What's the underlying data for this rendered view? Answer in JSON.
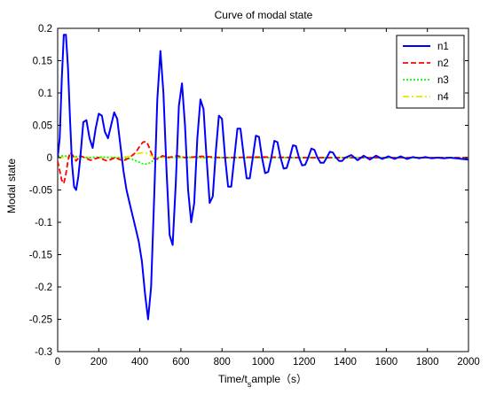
{
  "chart_data": {
    "type": "line",
    "title": "Curve of modal state",
    "xlabel_parts": {
      "pre": "Time/t",
      "sub": "s",
      "post": "ample（s）"
    },
    "ylabel": "Modal state",
    "xlim": [
      0,
      2000
    ],
    "ylim": [
      -0.3,
      0.2
    ],
    "x_ticks": [
      0,
      200,
      400,
      600,
      800,
      1000,
      1200,
      1400,
      1600,
      1800,
      2000
    ],
    "y_ticks": [
      -0.3,
      -0.25,
      -0.2,
      -0.15,
      -0.1,
      -0.05,
      0,
      0.05,
      0.1,
      0.15,
      0.2
    ],
    "y_tick_labels": [
      "-0.3",
      "-0.25",
      "-0.2",
      "-0.15",
      "-0.1",
      "-0.05",
      "0",
      "0.05",
      "0.1",
      "0.15",
      "0.2"
    ],
    "grid": false,
    "legend_position": "top-right",
    "series": [
      {
        "name": "n1",
        "color": "#0000ff",
        "style": "solid",
        "x": [
          0,
          10,
          20,
          30,
          40,
          50,
          60,
          70,
          80,
          90,
          100,
          110,
          125,
          140,
          155,
          170,
          185,
          200,
          215,
          230,
          245,
          260,
          275,
          290,
          305,
          320,
          335,
          350,
          365,
          380,
          395,
          410,
          425,
          440,
          455,
          470,
          485,
          500,
          515,
          530,
          545,
          560,
          575,
          590,
          605,
          620,
          635,
          650,
          665,
          680,
          695,
          710,
          725,
          740,
          755,
          770,
          785,
          800,
          815,
          830,
          845,
          860,
          875,
          890,
          905,
          920,
          935,
          950,
          965,
          980,
          995,
          1010,
          1025,
          1040,
          1055,
          1070,
          1085,
          1100,
          1115,
          1130,
          1145,
          1160,
          1175,
          1190,
          1205,
          1220,
          1235,
          1250,
          1265,
          1280,
          1295,
          1310,
          1325,
          1340,
          1355,
          1370,
          1385,
          1400,
          1430,
          1460,
          1490,
          1520,
          1550,
          1580,
          1610,
          1640,
          1670,
          1700,
          1730,
          1760,
          1790,
          1820,
          1850,
          1880,
          1910,
          1940,
          1970,
          2000
        ],
        "values": [
          0.0,
          0.03,
          0.12,
          0.19,
          0.19,
          0.14,
          0.06,
          -0.01,
          -0.045,
          -0.05,
          -0.03,
          0.0,
          0.055,
          0.058,
          0.03,
          0.015,
          0.045,
          0.068,
          0.065,
          0.04,
          0.03,
          0.05,
          0.07,
          0.06,
          0.02,
          -0.02,
          -0.05,
          -0.07,
          -0.09,
          -0.11,
          -0.13,
          -0.16,
          -0.21,
          -0.25,
          -0.2,
          -0.06,
          0.09,
          0.165,
          0.1,
          -0.02,
          -0.12,
          -0.135,
          -0.04,
          0.08,
          0.115,
          0.05,
          -0.05,
          -0.1,
          -0.07,
          0.03,
          0.09,
          0.075,
          0.0,
          -0.07,
          -0.06,
          0.01,
          0.065,
          0.06,
          0.0,
          -0.045,
          -0.045,
          0.0,
          0.045,
          0.045,
          0.005,
          -0.032,
          -0.032,
          0.0,
          0.034,
          0.032,
          0.0,
          -0.024,
          -0.022,
          0.0,
          0.026,
          0.024,
          0.0,
          -0.017,
          -0.016,
          0.0,
          0.019,
          0.018,
          0.0,
          -0.012,
          -0.011,
          0.0,
          0.014,
          0.012,
          0.0,
          -0.008,
          -0.008,
          0.0,
          0.009,
          0.008,
          0.0,
          -0.005,
          -0.005,
          0.0,
          0.004,
          -0.004,
          0.003,
          -0.003,
          0.003,
          -0.002,
          0.002,
          -0.002,
          0.002,
          -0.002,
          0.001,
          -0.001,
          0.001,
          -0.001,
          0.0,
          -0.001,
          0.0,
          -0.001,
          -0.002,
          -0.003
        ]
      },
      {
        "name": "n2",
        "color": "#ff0000",
        "style": "dashed",
        "x": [
          0,
          10,
          20,
          30,
          40,
          50,
          60,
          75,
          90,
          110,
          130,
          160,
          200,
          240,
          280,
          320,
          350,
          380,
          400,
          415,
          430,
          440,
          455,
          470,
          490,
          510,
          540,
          580,
          620,
          700,
          800,
          1000,
          1200,
          1400,
          1600,
          1800,
          2000
        ],
        "values": [
          -0.005,
          -0.02,
          -0.035,
          -0.04,
          -0.025,
          -0.005,
          0.008,
          0.003,
          -0.005,
          0.003,
          0.0,
          -0.004,
          0.0,
          -0.005,
          0.0,
          -0.005,
          0.0,
          0.008,
          0.018,
          0.024,
          0.025,
          0.02,
          0.008,
          -0.002,
          -0.002,
          0.003,
          0.0,
          0.003,
          0.0,
          0.002,
          0.0,
          0.001,
          0.0,
          0.0,
          0.0,
          0.0,
          0.0
        ]
      },
      {
        "name": "n3",
        "color": "#00ff00",
        "style": "dotted",
        "x": [
          0,
          30,
          60,
          100,
          150,
          200,
          300,
          360,
          390,
          410,
          430,
          450,
          470,
          490,
          520,
          560,
          620,
          700,
          800,
          1000,
          1200,
          1400,
          1600,
          1800,
          2000
        ],
        "values": [
          0.002,
          0.003,
          0.001,
          0.002,
          0.0,
          0.001,
          0.0,
          -0.002,
          -0.006,
          -0.009,
          -0.01,
          -0.008,
          -0.003,
          0.0,
          0.002,
          0.0,
          0.001,
          0.0,
          0.0,
          0.0,
          0.0,
          0.0,
          0.0,
          0.0,
          0.0
        ]
      },
      {
        "name": "n4",
        "color": "#e6e600",
        "style": "dashdot",
        "x": [
          0,
          50,
          100,
          200,
          300,
          350,
          380,
          400,
          420,
          440,
          460,
          480,
          500,
          550,
          600,
          700,
          800,
          1000,
          1200,
          1400,
          1600,
          1800,
          2000
        ],
        "values": [
          0.0,
          0.001,
          0.0,
          0.0,
          0.0,
          0.002,
          0.005,
          0.007,
          0.008,
          0.006,
          0.002,
          -0.001,
          0.0,
          0.001,
          0.0,
          0.0,
          0.0,
          0.0,
          0.0,
          0.0,
          0.0,
          0.0,
          0.0
        ]
      }
    ]
  }
}
